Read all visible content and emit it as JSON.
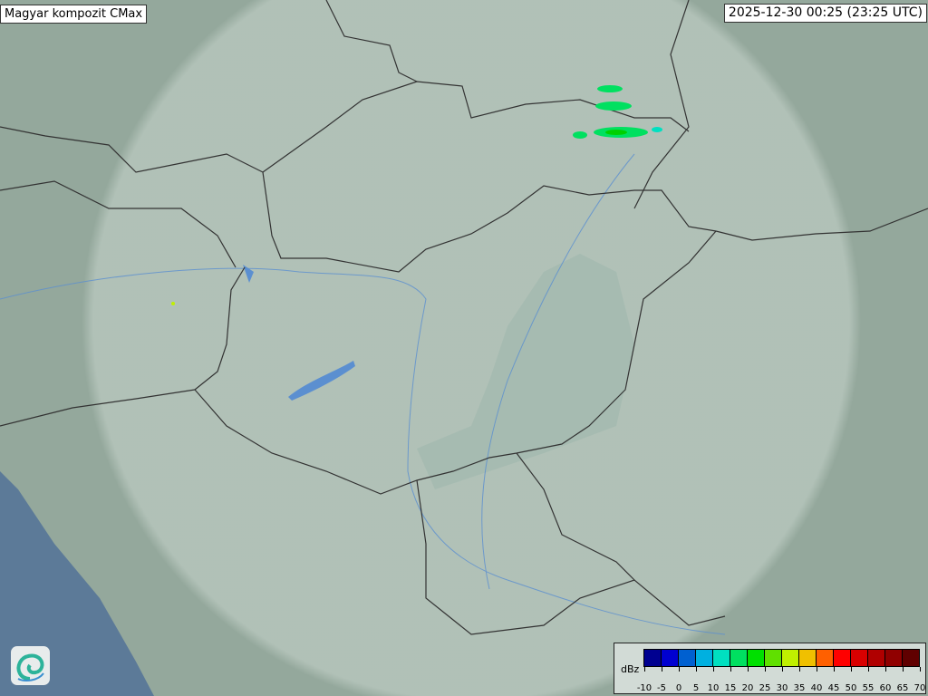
{
  "header": {
    "title": "Magyar kompozit  CMax",
    "timestamp": "2025-12-30 00:25 (23:25 UTC)"
  },
  "map": {
    "background_color": "#8fa59a",
    "coverage_color": "#e6efe9",
    "border_color": "#333333",
    "river_color": "#5b8fd0",
    "sea_color": "#5c7a98"
  },
  "legend": {
    "unit": "dBz",
    "ticks": [
      "-10",
      "-5",
      "0",
      "5",
      "10",
      "15",
      "20",
      "25",
      "30",
      "35",
      "40",
      "45",
      "50",
      "55",
      "60",
      "65",
      "70"
    ],
    "colors": [
      "#000090",
      "#0000d0",
      "#0060d0",
      "#00b0e0",
      "#00e0c0",
      "#00e060",
      "#00e000",
      "#60e000",
      "#c0f000",
      "#f0c000",
      "#ff6000",
      "#ff0000",
      "#d80000",
      "#b00000",
      "#900000",
      "#600000"
    ]
  },
  "logo": {
    "icon": "swirl-logo-icon"
  }
}
